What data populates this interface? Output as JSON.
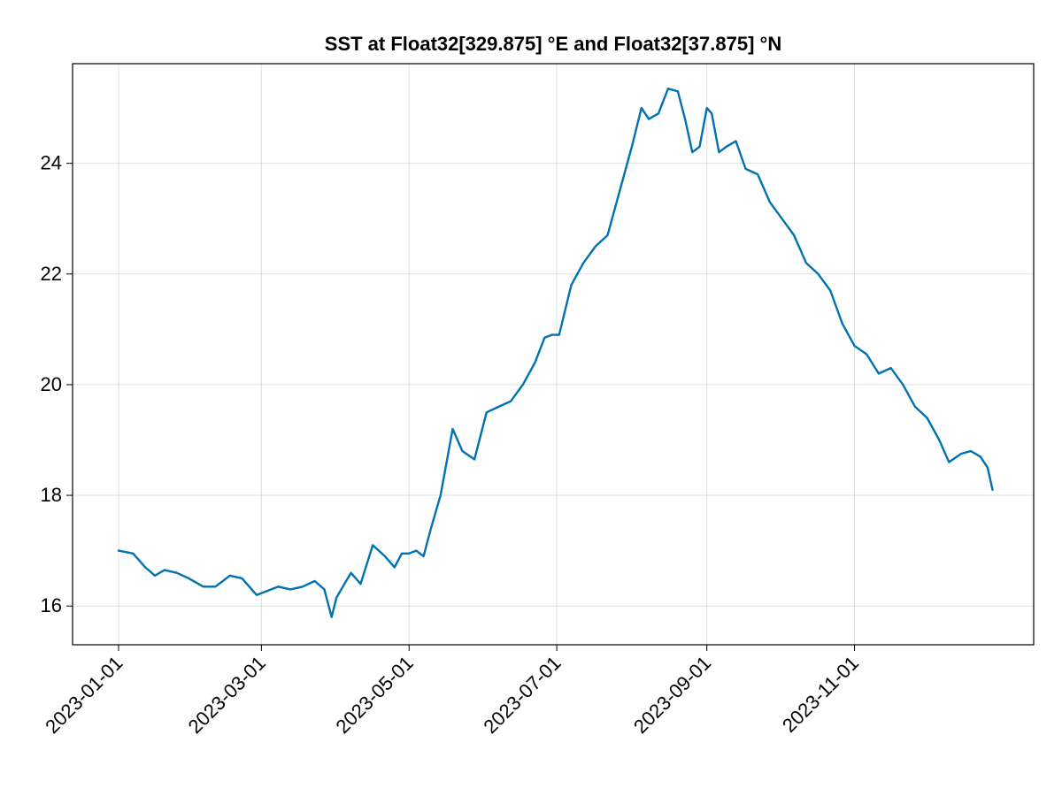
{
  "chart_data": {
    "type": "line",
    "title": "SST at Float32[329.875] °E and Float32[37.875] °N",
    "xlabel": "",
    "ylabel": "",
    "x_axis": "date",
    "xlim": [
      "2022-12-13",
      "2024-01-14"
    ],
    "ylim": [
      15.3,
      25.8
    ],
    "grid": true,
    "x_ticks": [
      "2023-01-01",
      "2023-03-01",
      "2023-05-01",
      "2023-07-01",
      "2023-09-01",
      "2023-11-01"
    ],
    "y_ticks": [
      16,
      18,
      20,
      22,
      24
    ],
    "color": "#0072b2",
    "series": [
      {
        "x": [
          "2023-01-01",
          "2023-01-07",
          "2023-01-12",
          "2023-01-16",
          "2023-01-20",
          "2023-01-25",
          "2023-01-30",
          "2023-02-05",
          "2023-02-10",
          "2023-02-16",
          "2023-02-21",
          "2023-02-27",
          "2023-03-02",
          "2023-03-08",
          "2023-03-13",
          "2023-03-18",
          "2023-03-23",
          "2023-03-27",
          "2023-03-30",
          "2023-04-01",
          "2023-04-03",
          "2023-04-07",
          "2023-04-11",
          "2023-04-16",
          "2023-04-21",
          "2023-04-25",
          "2023-04-28",
          "2023-05-01",
          "2023-05-04",
          "2023-05-07",
          "2023-05-10",
          "2023-05-14",
          "2023-05-19",
          "2023-05-23",
          "2023-05-28",
          "2023-06-02",
          "2023-06-07",
          "2023-06-12",
          "2023-06-17",
          "2023-06-22",
          "2023-06-26",
          "2023-06-29",
          "2023-07-02",
          "2023-07-07",
          "2023-07-12",
          "2023-07-17",
          "2023-07-22",
          "2023-07-27",
          "2023-08-01",
          "2023-08-05",
          "2023-08-08",
          "2023-08-12",
          "2023-08-16",
          "2023-08-20",
          "2023-08-23",
          "2023-08-26",
          "2023-08-29",
          "2023-09-01",
          "2023-09-03",
          "2023-09-06",
          "2023-09-09",
          "2023-09-13",
          "2023-09-17",
          "2023-09-22",
          "2023-09-27",
          "2023-10-02",
          "2023-10-07",
          "2023-10-12",
          "2023-10-17",
          "2023-10-22",
          "2023-10-27",
          "2023-11-01",
          "2023-11-06",
          "2023-11-11",
          "2023-11-16",
          "2023-11-21",
          "2023-11-26",
          "2023-12-01",
          "2023-12-06",
          "2023-12-10",
          "2023-12-15",
          "2023-12-19",
          "2023-12-23",
          "2023-12-26",
          "2023-12-28"
        ],
        "values": [
          17.0,
          16.95,
          16.7,
          16.55,
          16.65,
          16.6,
          16.5,
          16.35,
          16.35,
          16.55,
          16.5,
          16.2,
          16.25,
          16.35,
          16.3,
          16.35,
          16.45,
          16.3,
          15.8,
          16.15,
          16.3,
          16.6,
          16.4,
          17.1,
          16.9,
          16.7,
          16.95,
          16.95,
          17.0,
          16.9,
          17.4,
          18.0,
          19.2,
          18.8,
          18.65,
          19.5,
          19.6,
          19.7,
          20.0,
          20.4,
          20.85,
          20.9,
          20.9,
          21.8,
          22.2,
          22.5,
          22.7,
          23.5,
          24.3,
          25.0,
          24.8,
          24.9,
          25.35,
          25.3,
          24.8,
          24.2,
          24.3,
          25.0,
          24.9,
          24.2,
          24.3,
          24.4,
          23.9,
          23.8,
          23.3,
          23.0,
          22.7,
          22.2,
          22.0,
          21.7,
          21.1,
          20.7,
          20.55,
          20.2,
          20.3,
          20.0,
          19.6,
          19.4,
          19.0,
          18.6,
          18.75,
          18.8,
          18.7,
          18.5,
          18.1
        ]
      }
    ]
  }
}
